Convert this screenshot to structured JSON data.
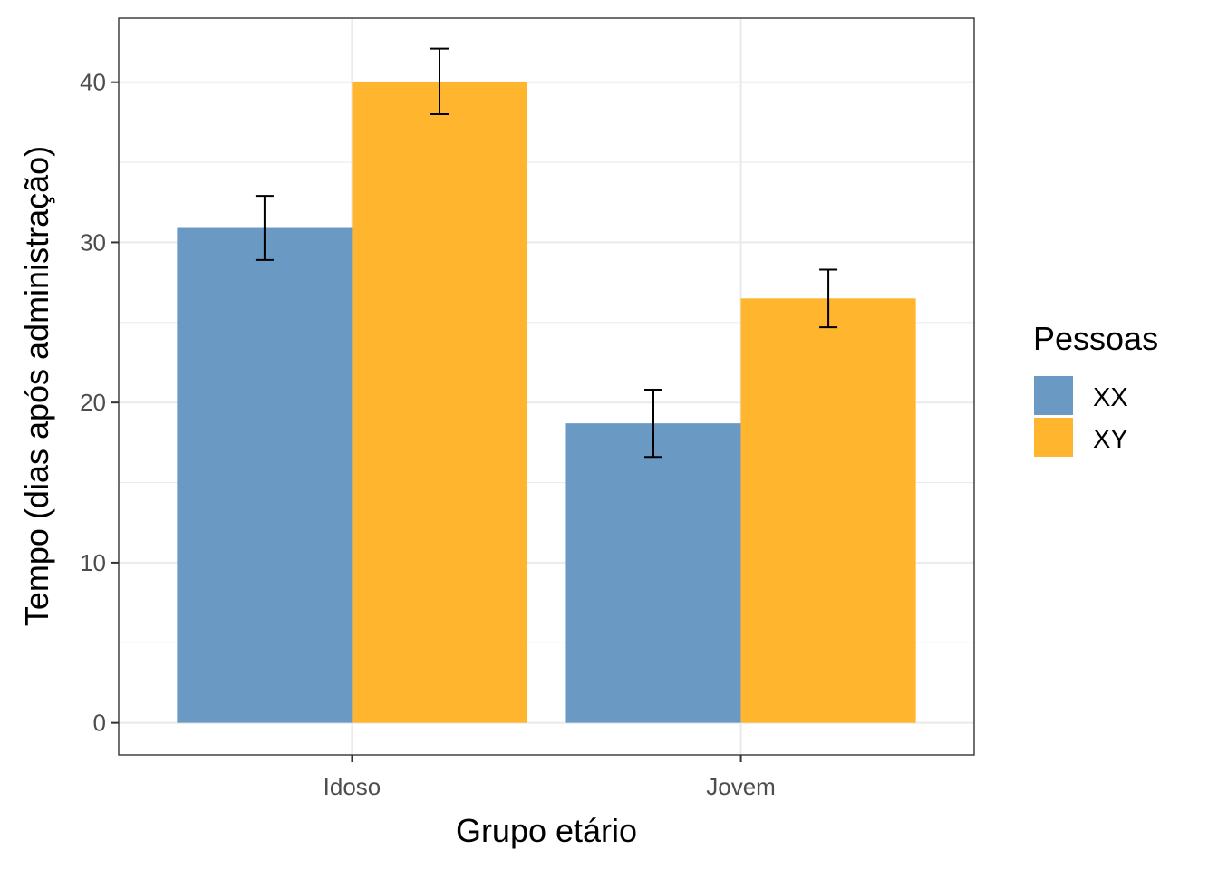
{
  "chart_data": {
    "type": "bar",
    "xlabel": "Grupo etário",
    "ylabel": "Tempo (dias após administração)",
    "categories": [
      "Idoso",
      "Jovem"
    ],
    "series": [
      {
        "name": "XX",
        "color": "#6a9ac4",
        "values": [
          30.9,
          18.7
        ],
        "error_low": [
          28.9,
          16.6
        ],
        "error_high": [
          32.9,
          20.8
        ]
      },
      {
        "name": "XY",
        "color": "#ffb52e",
        "values": [
          40.0,
          26.5
        ],
        "error_low": [
          38.0,
          24.7
        ],
        "error_high": [
          42.1,
          28.3
        ]
      }
    ],
    "ylim": [
      -2,
      44
    ],
    "yticks": [
      0,
      10,
      20,
      30,
      40
    ],
    "ytick_labels": [
      "0",
      "10",
      "20",
      "30",
      "40"
    ],
    "grid": true,
    "legend": {
      "title": "Pessoas",
      "position": "right"
    }
  }
}
